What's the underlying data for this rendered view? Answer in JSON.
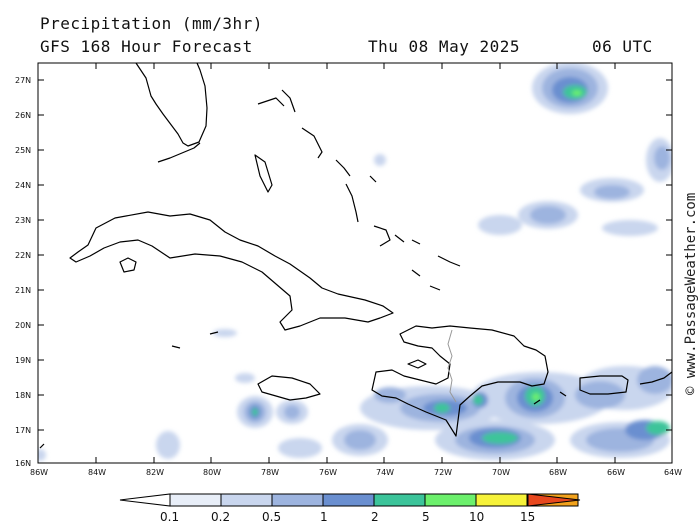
{
  "header": {
    "title": "Precipitation (mm/3hr)",
    "model": "GFS 168 Hour Forecast",
    "date": "Thu 08 May 2025",
    "time": "06 UTC"
  },
  "axes": {
    "lat_labels": [
      "27N",
      "26N",
      "25N",
      "24N",
      "23N",
      "22N",
      "21N",
      "20N",
      "19N",
      "18N",
      "17N",
      "16N"
    ],
    "lon_labels": [
      "86W",
      "84W",
      "82W",
      "80W",
      "78W",
      "76W",
      "74W",
      "72W",
      "70W",
      "68W",
      "66W",
      "64W"
    ]
  },
  "colorbar": {
    "labels": [
      "0.1",
      "0.2",
      "0.5",
      "1",
      "2",
      "5",
      "10",
      "15"
    ],
    "colors": [
      "#ffffff",
      "#e8eef8",
      "#c9d6ee",
      "#9db4df",
      "#6a8fd0",
      "#3cc49a",
      "#6cf06c",
      "#f6f23a",
      "#f2a21c",
      "#e8481e"
    ]
  },
  "watermark": "© www.PassageWeather.com"
}
